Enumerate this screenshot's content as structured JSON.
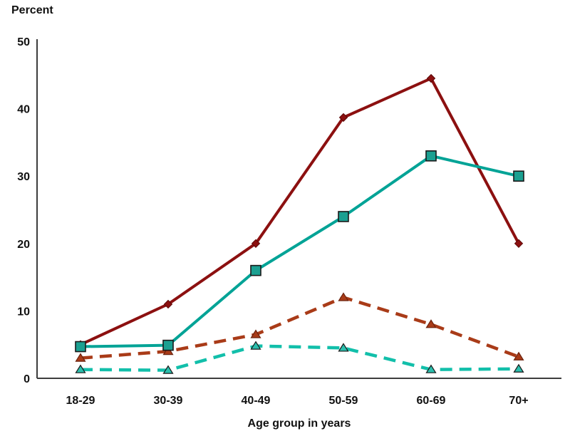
{
  "chart_data": {
    "type": "line",
    "title": "",
    "ylabel": "Percent",
    "xlabel": "Age group in years",
    "categories": [
      "18-29",
      "30-39",
      "40-49",
      "50-59",
      "60-69",
      "70+"
    ],
    "y_ticks": [
      0,
      10,
      20,
      30,
      40,
      50
    ],
    "ylim": [
      0,
      50
    ],
    "grid": false,
    "legend": "none",
    "axis_color": "#3d3d3d",
    "series": [
      {
        "id": "dark-red-solid-diamond",
        "values": [
          5,
          11,
          20,
          38.7,
          44.5,
          20
        ],
        "color": "#8C1010",
        "line_style": "solid",
        "marker": "diamond",
        "marker_color": "#8C1010",
        "marker_outline": "#5A0808"
      },
      {
        "id": "teal-solid-square",
        "values": [
          4.7,
          4.9,
          16,
          24,
          33,
          30
        ],
        "color": "#00A396",
        "line_style": "solid",
        "marker": "square",
        "marker_color": "#1BA091",
        "marker_outline": "#1a1a1a"
      },
      {
        "id": "rust-dashed-triangle",
        "values": [
          3,
          4,
          6.5,
          12,
          8,
          3.2
        ],
        "color": "#A93B18",
        "line_style": "dashed",
        "marker": "triangle",
        "marker_color": "#A93B18",
        "marker_outline": "#6B220D"
      },
      {
        "id": "teal-dashed-triangle",
        "values": [
          1.3,
          1.2,
          4.8,
          4.5,
          1.3,
          1.4
        ],
        "color": "#12BFAA",
        "line_style": "dashed",
        "marker": "triangle",
        "marker_color": "#2BBFAD",
        "marker_outline": "#1a1a1a"
      }
    ]
  }
}
